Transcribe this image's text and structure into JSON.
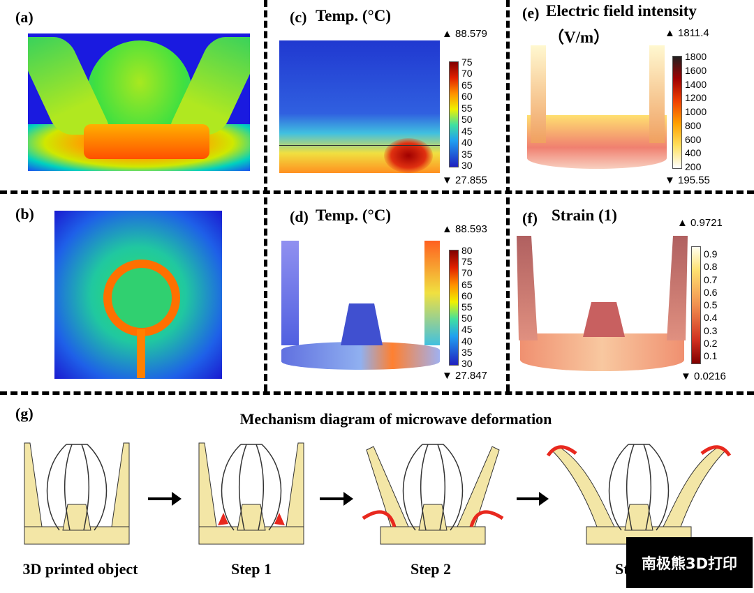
{
  "panels": {
    "a": {
      "label": "(a)"
    },
    "b": {
      "label": "(b)"
    },
    "c": {
      "label": "(c)",
      "title": "Temp. (°C)",
      "max": "▲ 88.579",
      "min": "▼ 27.855",
      "ticks": [
        "75",
        "70",
        "65",
        "60",
        "55",
        "50",
        "45",
        "40",
        "35",
        "30"
      ]
    },
    "d": {
      "label": "(d)",
      "title": "Temp. (°C)",
      "max": "▲ 88.593",
      "min": "▼ 27.847",
      "ticks": [
        "80",
        "75",
        "70",
        "65",
        "60",
        "55",
        "50",
        "45",
        "40",
        "35",
        "30"
      ]
    },
    "e": {
      "label": "(e)",
      "title": "Electric field intensity",
      "unit": "（V/m）",
      "max": "▲ 1811.4",
      "min": "▼ 195.55",
      "ticks": [
        "1800",
        "1600",
        "1400",
        "1200",
        "1000",
        "800",
        "600",
        "400",
        "200"
      ]
    },
    "f": {
      "label": "(f)",
      "title": "Strain (1)",
      "max": "▲ 0.9721",
      "min": "▼ 0.0216",
      "ticks": [
        "0.9",
        "0.8",
        "0.7",
        "0.6",
        "0.5",
        "0.4",
        "0.3",
        "0.2",
        "0.1"
      ]
    },
    "g": {
      "label": "(g)",
      "title": "Mechanism diagram of microwave deformation",
      "captions": [
        "3D printed object",
        "Step 1",
        "Step 2",
        "Step 3"
      ]
    }
  },
  "watermark": "南极熊3D打印",
  "colors": {
    "fill": "#f3e6a6",
    "arrow_red": "#e8281e"
  }
}
